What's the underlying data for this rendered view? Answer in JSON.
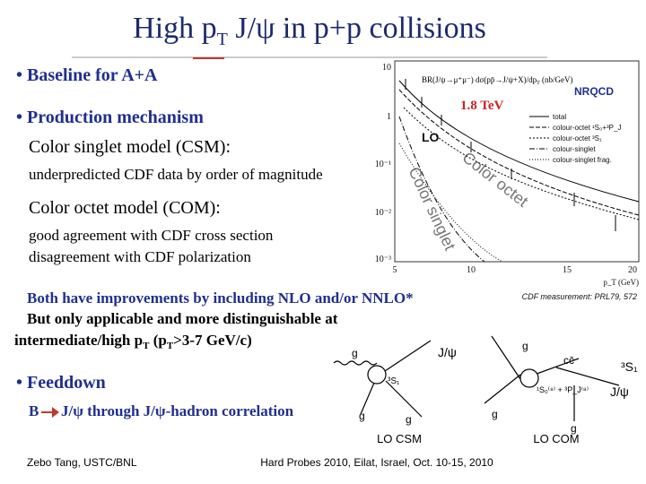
{
  "header": {
    "title": [
      "High p",
      "T",
      " J/ψ in p+p collisions"
    ]
  },
  "bullets": {
    "baseline": "• Baseline for A+A",
    "production": "• Production mechanism",
    "csm": "Color singlet model (CSM):",
    "csm_note": "underpredicted CDF data by order of magnitude",
    "com": "Color octet model (COM):",
    "com_note1": "good agreement with CDF cross section",
    "com_note2": "disagreement with CDF polarization",
    "nlo": "Both have improvements by including NLO and/or NNLO*",
    "applicable": "But only applicable and more distinguishable at",
    "range": [
      "intermediate/high p",
      "T",
      " (p",
      "T",
      ">3-7 GeV/c)"
    ],
    "feeddown": "• Feeddown",
    "b_letter": "B",
    "b_rest": "J/ψ through J/ψ-hadron correlation"
  },
  "plot": {
    "ylabel": "BR(J/ψ→μ⁺μ⁻) dσ(pp̄→J/ψ+X)/dp",
    "ylabel_sub": "T",
    "ylabel_unit": " (nb/GeV)",
    "nrqcd": "NRQCD",
    "energy": "1.8 TeV",
    "lo": "LO",
    "octet": "Color octet",
    "singlet": "Color singlet",
    "legend": [
      "total",
      "colour-octet ¹S₀+³P_J",
      "colour-octet ³S₁",
      "colour-singlet",
      "colour-singlet frag."
    ],
    "yticks": [
      "10",
      "1",
      "10⁻¹",
      "10⁻²",
      "10⁻³"
    ],
    "xticks": [
      "5",
      "10",
      "15",
      "20"
    ],
    "xlabel": "p_T (GeV)",
    "source": "CDF measurement: PRL79, 572"
  },
  "diagrams": {
    "csm_psi": "J/ψ",
    "csm_g": [
      "g",
      "g",
      "g"
    ],
    "csm_state": "³S₁",
    "csm_label": "LO CSM",
    "com_cc": "cc̄",
    "com_state": "¹S₀⁽⁸⁾ + ³P_J⁽⁸⁾",
    "com_g": [
      "g",
      "g",
      "g"
    ],
    "com_s": "³S₁",
    "com_psi": "J/ψ",
    "com_label": "LO COM"
  },
  "footer": {
    "author": "Zebo Tang, USTC/BNL",
    "event": "Hard Probes 2010, Eilat, Israel, Oct. 10-15, 2010"
  }
}
